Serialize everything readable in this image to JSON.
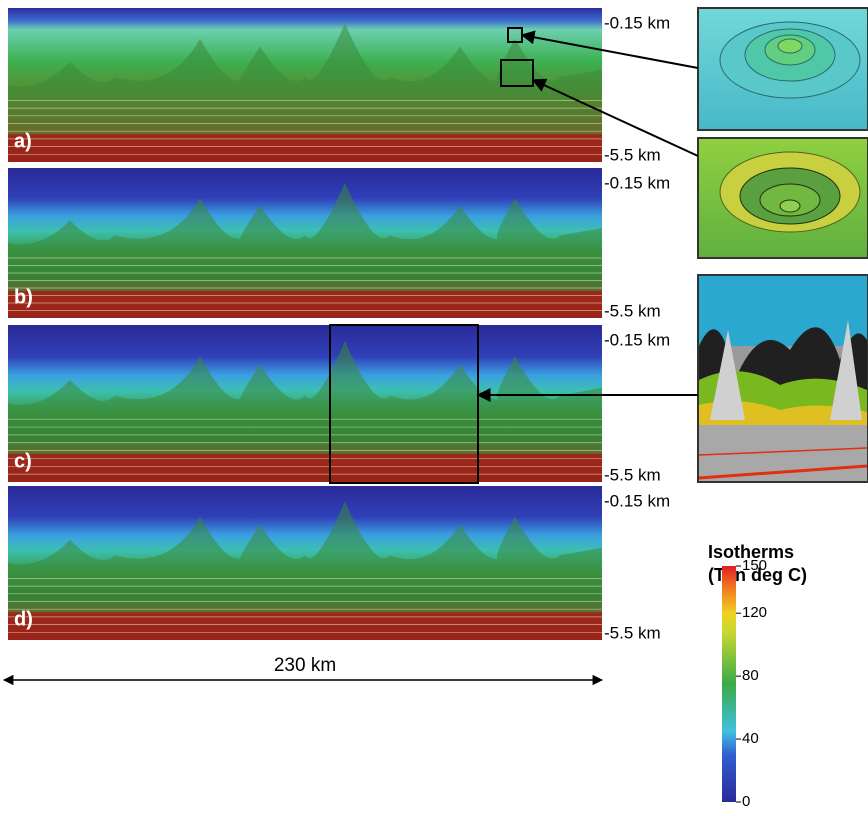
{
  "panels": [
    {
      "label": "a)",
      "top_depth": "-0.15 km",
      "bottom_depth": "-5.5 km"
    },
    {
      "label": "b)",
      "top_depth": "-0.15 km",
      "bottom_depth": "-5.5 km"
    },
    {
      "label": "c)",
      "top_depth": "-0.15 km",
      "bottom_depth": "-5.5 km"
    },
    {
      "label": "d)",
      "top_depth": "-0.15 km",
      "bottom_depth": "-5.5 km"
    }
  ],
  "scale_bar": {
    "label": "230 km"
  },
  "legend": {
    "title": "Isotherms",
    "subtitle": "(T in deg C)",
    "ticks": [
      150,
      120,
      80,
      40,
      0
    ]
  }
}
